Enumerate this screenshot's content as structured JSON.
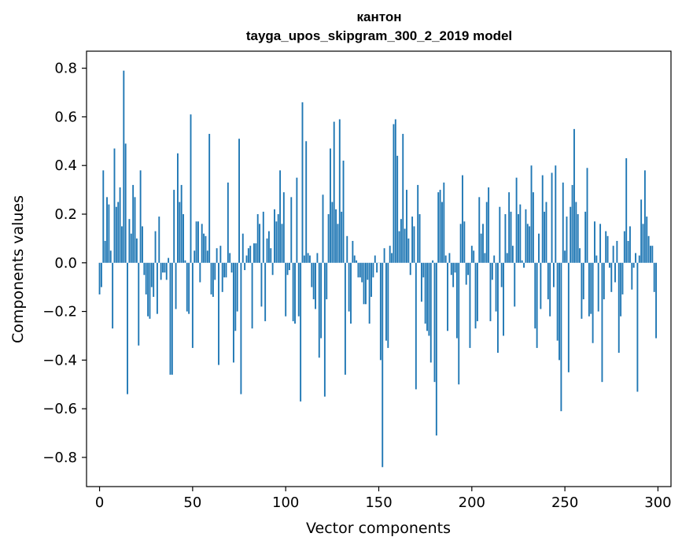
{
  "chart_data": {
    "type": "bar",
    "title_line1": "кантон",
    "title_line2": "tayga_upos_skipgram_300_2_2019 model",
    "xlabel": "Vector components",
    "ylabel": "Components values",
    "xlim": [
      -7,
      307
    ],
    "ylim": [
      -0.92,
      0.87
    ],
    "x_ticks": [
      0,
      50,
      100,
      150,
      200,
      250,
      300
    ],
    "y_ticks": [
      -0.8,
      -0.6,
      -0.4,
      -0.2,
      0.0,
      0.2,
      0.4,
      0.6,
      0.8
    ],
    "x_tick_labels": [
      "0",
      "50",
      "100",
      "150",
      "200",
      "250",
      "300"
    ],
    "y_tick_labels": [
      "−0.8",
      "−0.6",
      "−0.4",
      "−0.2",
      "0.0",
      "0.2",
      "0.4",
      "0.6",
      "0.8"
    ],
    "bar_color": "#1f77b4",
    "grid": false,
    "values": [
      -0.13,
      -0.1,
      0.38,
      0.09,
      0.27,
      0.24,
      0.05,
      -0.27,
      0.47,
      0.23,
      0.25,
      0.31,
      0.15,
      0.79,
      0.49,
      -0.54,
      0.18,
      0.12,
      0.32,
      0.27,
      0.1,
      -0.34,
      0.38,
      0.15,
      -0.05,
      -0.13,
      -0.22,
      -0.23,
      -0.1,
      -0.14,
      0.13,
      -0.21,
      0.19,
      -0.07,
      -0.04,
      -0.04,
      -0.07,
      0.02,
      -0.46,
      -0.46,
      0.3,
      -0.19,
      0.45,
      0.25,
      0.32,
      0.2,
      0.01,
      -0.2,
      -0.21,
      0.61,
      -0.35,
      0.05,
      0.17,
      0.17,
      -0.08,
      0.16,
      0.12,
      0.11,
      0.05,
      0.53,
      -0.13,
      -0.14,
      -0.07,
      0.06,
      -0.42,
      0.07,
      -0.12,
      -0.06,
      -0.06,
      0.33,
      0.04,
      -0.04,
      -0.41,
      -0.28,
      -0.2,
      0.51,
      -0.54,
      0.12,
      -0.03,
      0.03,
      0.06,
      0.07,
      -0.27,
      0.08,
      0.08,
      0.2,
      0.16,
      -0.18,
      0.21,
      -0.24,
      0.1,
      0.13,
      0.06,
      -0.05,
      0.22,
      0.17,
      0.2,
      0.38,
      0.16,
      0.29,
      -0.22,
      -0.05,
      -0.03,
      0.27,
      -0.24,
      -0.25,
      0.35,
      -0.22,
      -0.57,
      0.66,
      0.03,
      0.5,
      0.04,
      0.03,
      -0.1,
      -0.15,
      -0.19,
      0.04,
      -0.39,
      -0.31,
      0.28,
      -0.55,
      -0.15,
      0.2,
      0.47,
      0.25,
      0.58,
      0.22,
      0.16,
      0.59,
      0.21,
      0.42,
      -0.46,
      0.11,
      -0.2,
      -0.25,
      0.09,
      0.03,
      0.01,
      -0.06,
      -0.06,
      -0.08,
      -0.17,
      -0.17,
      -0.07,
      -0.25,
      -0.14,
      -0.06,
      0.03,
      -0.04,
      0.0,
      -0.4,
      -0.84,
      0.06,
      -0.32,
      -0.35,
      0.07,
      0.04,
      0.57,
      0.59,
      0.44,
      0.13,
      0.18,
      0.53,
      0.14,
      0.3,
      0.1,
      -0.05,
      0.19,
      0.15,
      -0.52,
      0.32,
      0.2,
      -0.16,
      -0.06,
      -0.25,
      -0.28,
      -0.3,
      -0.41,
      0.01,
      -0.49,
      -0.71,
      0.29,
      0.3,
      0.25,
      0.33,
      0.03,
      -0.28,
      0.04,
      -0.05,
      -0.1,
      -0.04,
      -0.31,
      -0.5,
      0.16,
      0.36,
      0.17,
      -0.09,
      -0.05,
      -0.35,
      0.07,
      0.05,
      -0.27,
      -0.24,
      0.27,
      0.12,
      0.16,
      0.04,
      0.25,
      0.31,
      -0.24,
      -0.07,
      0.03,
      -0.2,
      -0.37,
      0.23,
      -0.1,
      -0.3,
      0.2,
      0.04,
      0.29,
      0.21,
      0.07,
      -0.18,
      0.35,
      0.2,
      0.24,
      0.01,
      -0.02,
      0.22,
      0.16,
      0.15,
      0.4,
      0.29,
      -0.27,
      -0.35,
      0.12,
      -0.19,
      0.36,
      0.21,
      0.25,
      -0.15,
      -0.22,
      0.37,
      -0.1,
      0.4,
      -0.32,
      -0.4,
      -0.61,
      0.33,
      0.05,
      0.19,
      -0.45,
      0.23,
      0.32,
      0.55,
      0.25,
      0.2,
      0.06,
      -0.23,
      -0.15,
      0.21,
      0.39,
      -0.22,
      -0.21,
      -0.33,
      0.17,
      0.03,
      -0.2,
      0.16,
      -0.49,
      -0.15,
      0.13,
      0.11,
      -0.02,
      -0.12,
      0.07,
      -0.08,
      0.09,
      -0.37,
      -0.22,
      -0.13,
      0.13,
      0.43,
      0.09,
      0.15,
      -0.11,
      -0.02,
      0.04,
      -0.53,
      0.03,
      0.26,
      0.16,
      0.38,
      0.19,
      0.11,
      0.07,
      0.07,
      -0.12,
      -0.31
    ]
  }
}
